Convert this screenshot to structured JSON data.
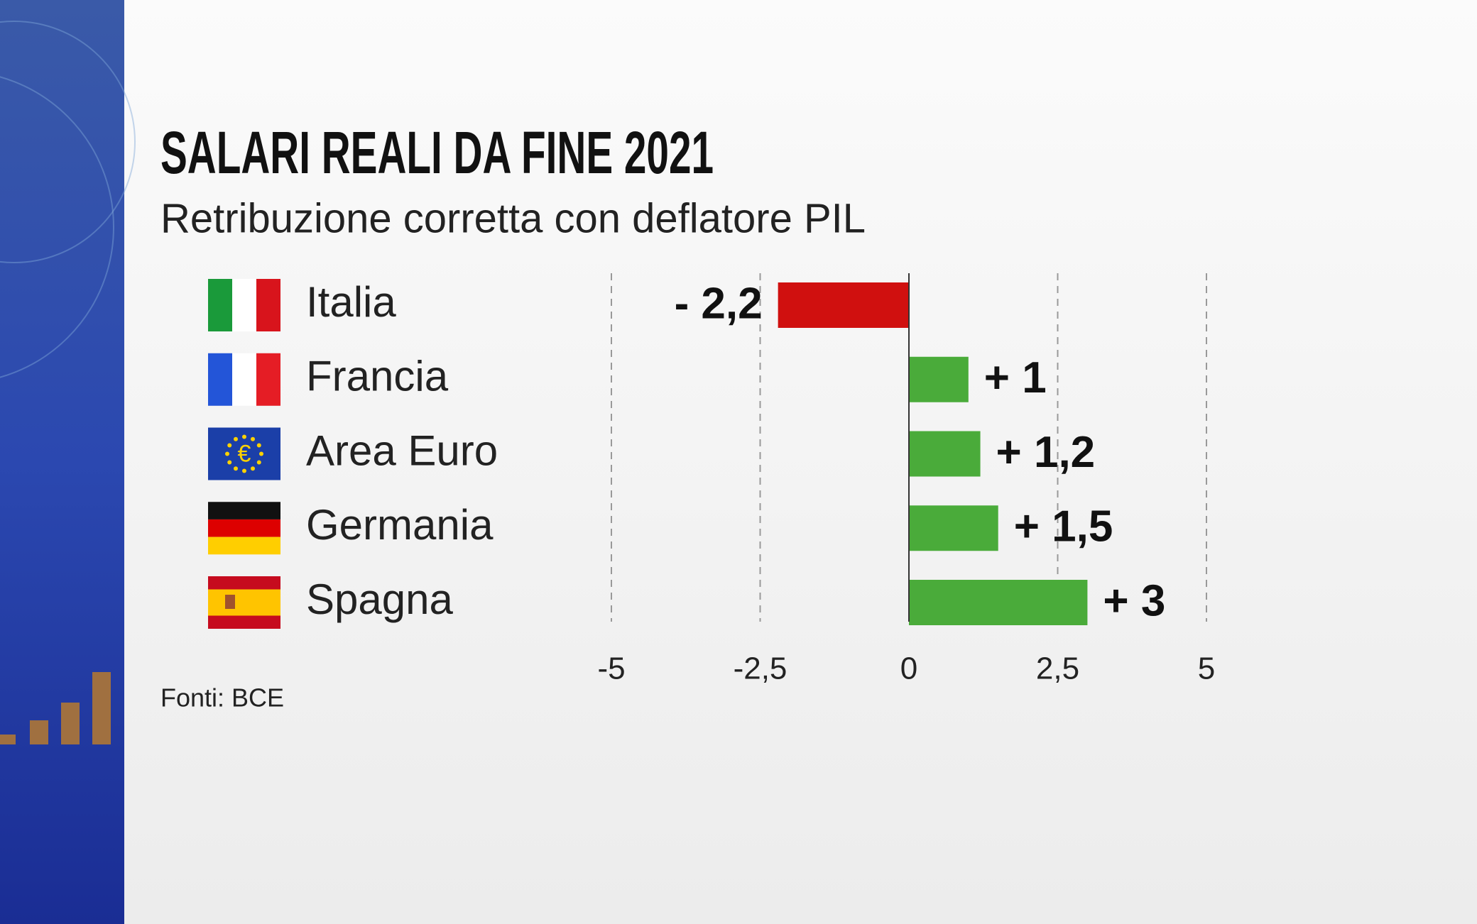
{
  "chart_data": {
    "type": "bar",
    "title": "SALARI REALI DA FINE 2021",
    "subtitle": "Retribuzione corretta con deflatore PIL",
    "source": "Fonti: BCE",
    "categories": [
      "Italia",
      "Francia",
      "Area Euro",
      "Germania",
      "Spagna"
    ],
    "values": [
      -2.2,
      1,
      1.2,
      1.5,
      3
    ],
    "value_labels": [
      "- 2,2",
      "+ 1",
      "+ 1,2",
      "+ 1,5",
      "+ 3"
    ],
    "colors": [
      "#d0100f",
      "#4aab3a",
      "#4aab3a",
      "#4aab3a",
      "#4aab3a"
    ],
    "xlim": [
      -5,
      5
    ],
    "xticks": [
      -5,
      {
        "value": -2.5,
        "label": "-2,5"
      },
      0,
      {
        "value": 2.5,
        "label": "2,5"
      },
      5
    ],
    "grid": true
  }
}
